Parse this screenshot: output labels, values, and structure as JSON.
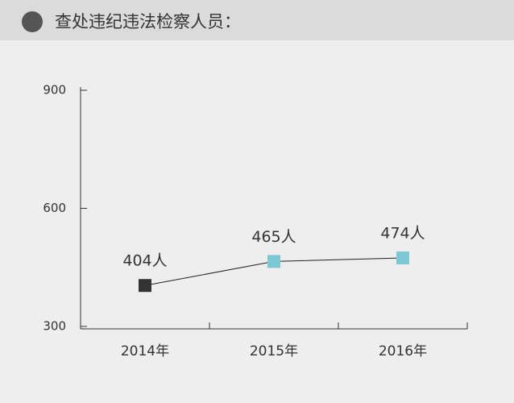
{
  "chart_data": {
    "type": "line",
    "title": "查处违纪违法检察人员：",
    "categories": [
      "2014年",
      "2015年",
      "2016年"
    ],
    "series": [
      {
        "values": [
          404,
          465,
          474
        ],
        "value_labels": [
          "404人",
          "465人",
          "474人"
        ],
        "color": "#222222",
        "point_colors": [
          "#333333",
          "#7ec8d4",
          "#7ec8d4"
        ]
      }
    ],
    "ylim": [
      300,
      900
    ],
    "yticks": [
      300,
      600,
      900
    ]
  }
}
